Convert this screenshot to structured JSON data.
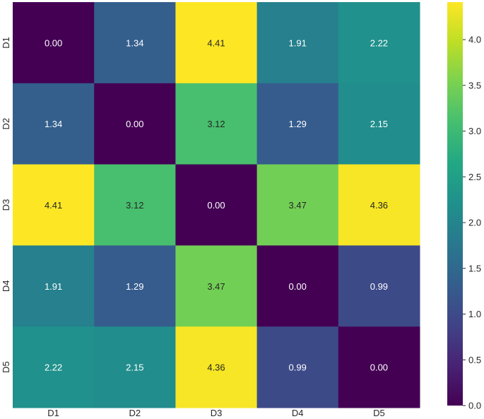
{
  "chart_data": {
    "type": "heatmap",
    "title": "",
    "xlabel": "",
    "ylabel": "",
    "x_categories": [
      "D1",
      "D2",
      "D3",
      "D4",
      "D5"
    ],
    "y_categories": [
      "D1",
      "D2",
      "D3",
      "D4",
      "D5"
    ],
    "values": [
      [
        0.0,
        1.34,
        4.41,
        1.91,
        2.22
      ],
      [
        1.34,
        0.0,
        3.12,
        1.29,
        2.15
      ],
      [
        4.41,
        3.12,
        0.0,
        3.47,
        4.36
      ],
      [
        1.91,
        1.29,
        3.47,
        0.0,
        0.99
      ],
      [
        2.22,
        2.15,
        4.36,
        0.99,
        0.0
      ]
    ],
    "value_format": "0.00",
    "colormap": "viridis",
    "colorbar": {
      "vmin": 0.0,
      "vmax": 4.41,
      "ticks": [
        "0.0",
        "0.5",
        "1.0",
        "1.5",
        "2.0",
        "2.5",
        "3.0",
        "3.5",
        "4.0"
      ]
    }
  }
}
